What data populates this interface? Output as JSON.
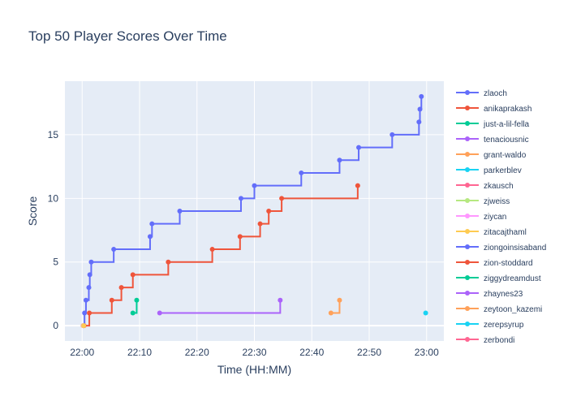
{
  "chart_data": {
    "type": "line",
    "line_shape": "step",
    "title": "Top 50 Player Scores Over Time",
    "xlabel": "Time (HH:MM)",
    "ylabel": "Score",
    "xlim": [
      "21:57",
      "23:03"
    ],
    "ylim": [
      -1.2,
      19.2
    ],
    "x_ticks": [
      "22:00",
      "22:10",
      "22:20",
      "22:30",
      "22:40",
      "22:50",
      "23:00"
    ],
    "y_ticks": [
      0,
      5,
      10,
      15
    ],
    "grid": true,
    "legend_position": "right",
    "background": "#e5ecf6",
    "series": [
      {
        "name": "zlaoch",
        "color": "#636efa",
        "points": [
          [
            "22:00:15",
            0
          ],
          [
            "22:00:25",
            1
          ],
          [
            "22:00:40",
            2
          ],
          [
            "22:01:10",
            3
          ],
          [
            "22:01:20",
            4
          ],
          [
            "22:01:35",
            5
          ],
          [
            "22:05:30",
            6
          ],
          [
            "22:11:50",
            7
          ],
          [
            "22:12:10",
            8
          ],
          [
            "22:17:00",
            9
          ],
          [
            "22:27:40",
            10
          ],
          [
            "22:30:00",
            11
          ],
          [
            "22:38:10",
            12
          ],
          [
            "22:44:50",
            13
          ],
          [
            "22:48:10",
            14
          ],
          [
            "22:54:00",
            15
          ],
          [
            "22:58:40",
            16
          ],
          [
            "22:58:50",
            17
          ],
          [
            "22:59:05",
            18
          ]
        ]
      },
      {
        "name": "anikaprakash",
        "color": "#ef553b",
        "points": [
          [
            "22:00:20",
            0
          ],
          [
            "22:01:15",
            1
          ],
          [
            "22:05:10",
            2
          ],
          [
            "22:06:50",
            3
          ],
          [
            "22:08:50",
            4
          ],
          [
            "22:15:00",
            5
          ],
          [
            "22:22:40",
            6
          ],
          [
            "22:27:30",
            7
          ],
          [
            "22:31:00",
            8
          ],
          [
            "22:32:30",
            9
          ],
          [
            "22:34:45",
            10
          ],
          [
            "22:48:00",
            11
          ]
        ]
      },
      {
        "name": "just-a-lil-fella",
        "color": "#00cc96",
        "points": [
          [
            "22:08:50",
            1
          ],
          [
            "22:09:30",
            2
          ]
        ]
      },
      {
        "name": "tenaciousnic",
        "color": "#ab63fa",
        "points": [
          [
            "22:13:30",
            1
          ],
          [
            "22:34:30",
            2
          ]
        ]
      },
      {
        "name": "grant-waldo",
        "color": "#ffa15a",
        "points": [
          [
            "22:43:20",
            1
          ],
          [
            "22:44:50",
            2
          ]
        ]
      },
      {
        "name": "parkerblev",
        "color": "#19d3f3",
        "points": [
          [
            "22:59:50",
            1
          ]
        ]
      },
      {
        "name": "zkausch",
        "color": "#ff6692",
        "points": [
          [
            "22:00:10",
            0
          ]
        ]
      },
      {
        "name": "zjweiss",
        "color": "#b6e880",
        "points": [
          [
            "22:00:12",
            0
          ]
        ]
      },
      {
        "name": "ziycan",
        "color": "#ff97ff",
        "points": [
          [
            "22:00:14",
            0
          ]
        ]
      },
      {
        "name": "zitacajthaml",
        "color": "#fecb52",
        "points": [
          [
            "22:00:16",
            0
          ]
        ]
      },
      {
        "name": "ziongoinsisaband",
        "color": "#636efa",
        "points": []
      },
      {
        "name": "zion-stoddard",
        "color": "#ef553b",
        "points": []
      },
      {
        "name": "ziggydreamdust",
        "color": "#00cc96",
        "points": []
      },
      {
        "name": "zhaynes23",
        "color": "#ab63fa",
        "points": []
      },
      {
        "name": "zeytoon_kazemi",
        "color": "#ffa15a",
        "points": []
      },
      {
        "name": "zerepsyrup",
        "color": "#19d3f3",
        "points": []
      },
      {
        "name": "zerbondi",
        "color": "#ff6692",
        "points": []
      }
    ]
  }
}
